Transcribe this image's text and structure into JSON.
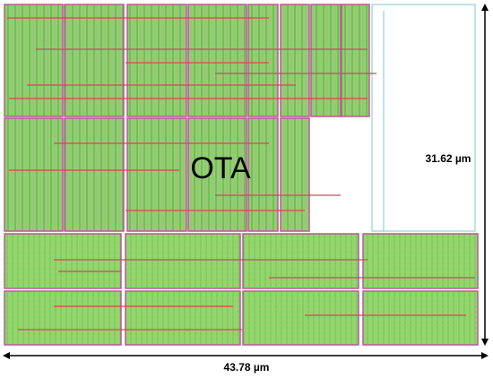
{
  "layout": {
    "block_label": "OTA",
    "height_label": "31.62 µm",
    "width_label": "43.78 µm"
  }
}
